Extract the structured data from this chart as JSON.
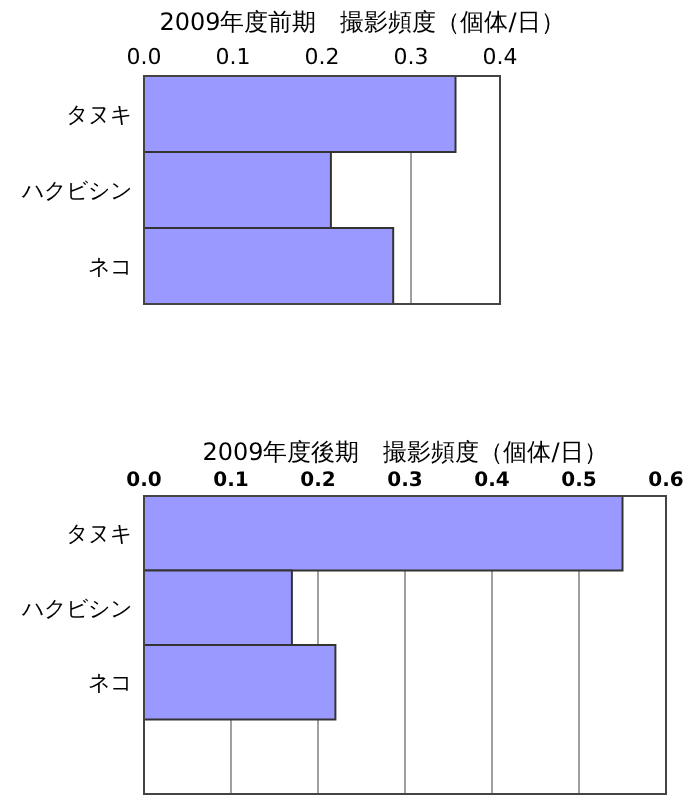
{
  "chart_data": [
    {
      "type": "bar",
      "orientation": "horizontal",
      "title": "2009年度前期　撮影頻度（個体/日）",
      "categories": [
        "タヌキ",
        "ハクビシン",
        "ネコ"
      ],
      "values": [
        0.35,
        0.21,
        0.28
      ],
      "color": "#9999ff",
      "xlim": [
        0,
        0.4
      ],
      "xticks": [
        {
          "value": 0,
          "label": "0.0"
        },
        {
          "value": 0.1,
          "label": "0.1"
        },
        {
          "value": 0.2,
          "label": "0.2"
        },
        {
          "value": 0.3,
          "label": "0.3"
        },
        {
          "value": 0.4,
          "label": "0.4"
        }
      ],
      "grid": "x"
    },
    {
      "type": "bar",
      "orientation": "horizontal",
      "title": "2009年度後期　撮影頻度（個体/日）",
      "categories": [
        "タヌキ",
        "ハクビシン",
        "ネコ",
        null
      ],
      "values": [
        0.55,
        0.17,
        0.22,
        null
      ],
      "color": "#9999ff",
      "xlim": [
        0,
        0.6
      ],
      "xticks": [
        {
          "value": 0,
          "label": "0.0"
        },
        {
          "value": 0.1,
          "label": "0.1"
        },
        {
          "value": 0.2,
          "label": "0.2"
        },
        {
          "value": 0.3,
          "label": "0.3"
        },
        {
          "value": 0.4,
          "label": "0.4"
        },
        {
          "value": 0.5,
          "label": "0.5"
        },
        {
          "value": 0.6,
          "label": "0.6"
        }
      ],
      "grid": "x"
    }
  ]
}
